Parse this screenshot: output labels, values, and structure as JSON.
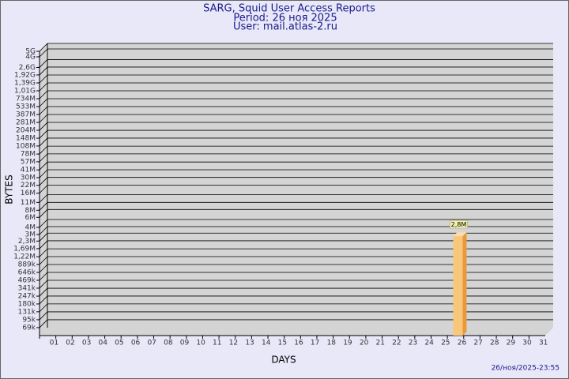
{
  "chart_data": {
    "type": "bar",
    "title": "SARG, Squid User Access Reports",
    "subtitle": "Period: 26 ноя 2025",
    "user": "User: mail.atlas-2.ru",
    "y_label": "BYTES",
    "x_label": "DAYS",
    "footer": "26/ноя/2025-23:55",
    "log_scale": true,
    "grid": true,
    "color": "#f9c77a",
    "categories": [
      "01",
      "02",
      "03",
      "04",
      "05",
      "06",
      "07",
      "08",
      "09",
      "10",
      "11",
      "12",
      "13",
      "14",
      "15",
      "16",
      "17",
      "18",
      "19",
      "20",
      "21",
      "22",
      "23",
      "24",
      "25",
      "26",
      "27",
      "28",
      "29",
      "30",
      "31"
    ],
    "values": [
      null,
      null,
      null,
      null,
      null,
      null,
      null,
      null,
      null,
      null,
      null,
      null,
      null,
      null,
      null,
      null,
      null,
      null,
      null,
      null,
      null,
      null,
      null,
      null,
      null,
      2800000,
      null,
      null,
      null,
      null,
      null
    ],
    "value_labels": [
      null,
      null,
      null,
      null,
      null,
      null,
      null,
      null,
      null,
      null,
      null,
      null,
      null,
      null,
      null,
      null,
      null,
      null,
      null,
      null,
      null,
      null,
      null,
      null,
      null,
      "2,8M",
      null,
      null,
      null,
      null,
      null
    ],
    "ylim": [
      50000,
      5000000000
    ],
    "yticks": [
      {
        "value": 69000,
        "label": "69k"
      },
      {
        "value": 95000,
        "label": "95k"
      },
      {
        "value": 131000,
        "label": "131k"
      },
      {
        "value": 180000,
        "label": "180k"
      },
      {
        "value": 247000,
        "label": "247k"
      },
      {
        "value": 341000,
        "label": "341k"
      },
      {
        "value": 469000,
        "label": "469k"
      },
      {
        "value": 646000,
        "label": "646k"
      },
      {
        "value": 889000,
        "label": "889k"
      },
      {
        "value": 1220000,
        "label": "1,22M"
      },
      {
        "value": 1690000,
        "label": "1,69M"
      },
      {
        "value": 2300000,
        "label": "2,3M"
      },
      {
        "value": 3000000,
        "label": "3M"
      },
      {
        "value": 4000000,
        "label": "4M"
      },
      {
        "value": 6000000,
        "label": "6M"
      },
      {
        "value": 8000000,
        "label": "8M"
      },
      {
        "value": 11000000,
        "label": "11M"
      },
      {
        "value": 16000000,
        "label": "16M"
      },
      {
        "value": 22000000,
        "label": "22M"
      },
      {
        "value": 30000000,
        "label": "30M"
      },
      {
        "value": 41000000,
        "label": "41M"
      },
      {
        "value": 57000000,
        "label": "57M"
      },
      {
        "value": 78000000,
        "label": "78M"
      },
      {
        "value": 108000000,
        "label": "108M"
      },
      {
        "value": 148000000,
        "label": "148M"
      },
      {
        "value": 204000000,
        "label": "204M"
      },
      {
        "value": 281000000,
        "label": "281M"
      },
      {
        "value": 387000000,
        "label": "387M"
      },
      {
        "value": 533000000,
        "label": "533M"
      },
      {
        "value": 734000000,
        "label": "734M"
      },
      {
        "value": 1010000000,
        "label": "1,01G"
      },
      {
        "value": 1390000000,
        "label": "1,39G"
      },
      {
        "value": 1920000000,
        "label": "1,92G"
      },
      {
        "value": 2600000000,
        "label": "2,6G"
      },
      {
        "value": 4000000000,
        "label": "4G"
      },
      {
        "value": 5000000000,
        "label": "5G"
      }
    ]
  }
}
